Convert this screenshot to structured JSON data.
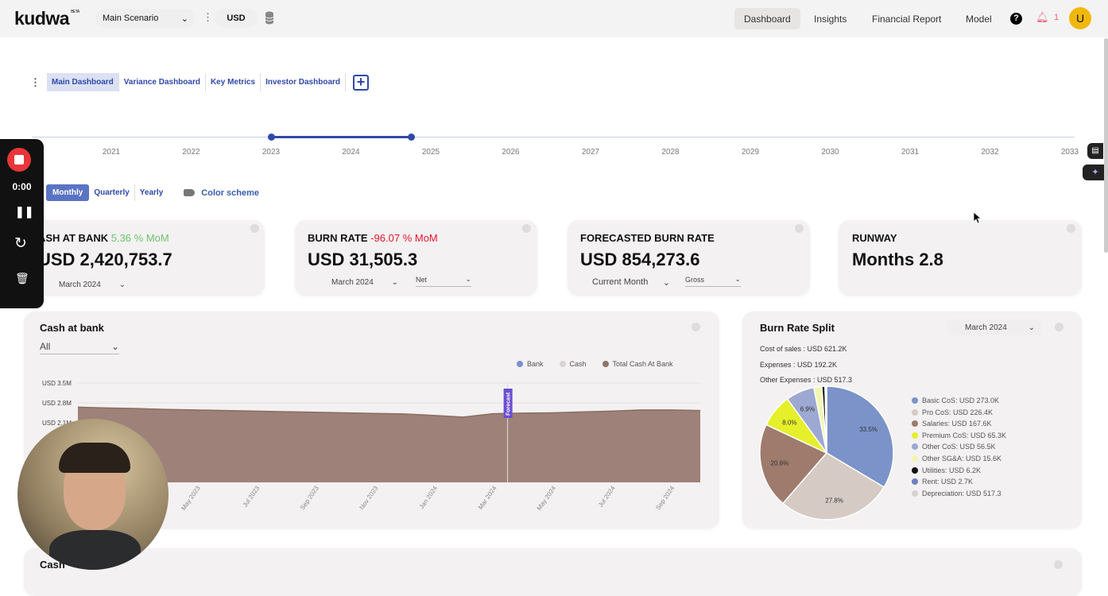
{
  "header": {
    "logo": "kudwa",
    "logo_badge": "BETA",
    "scenario": "Main Scenario",
    "currency": "USD",
    "nav": [
      "Dashboard",
      "Insights",
      "Financial Report",
      "Model"
    ],
    "active_nav": "Dashboard",
    "notifications": "1",
    "avatar": "U"
  },
  "tabs": {
    "items": [
      "Main Dashboard",
      "Variance Dashboard",
      "Key Metrics",
      "Investor Dashboard"
    ],
    "active": "Main Dashboard"
  },
  "timeline": {
    "years": [
      "2021",
      "2022",
      "2023",
      "2024",
      "2025",
      "2026",
      "2027",
      "2028",
      "2029",
      "2030",
      "2031",
      "2032",
      "2033"
    ],
    "range": [
      "2023",
      "2024-09"
    ]
  },
  "period": {
    "options": [
      "Monthly",
      "Quarterly",
      "Yearly"
    ],
    "visible_first": "thly",
    "active": "Monthly",
    "color_scheme": "Color scheme"
  },
  "kpis": [
    {
      "title": "CASH AT BANK",
      "title_visible": "ASH AT BANK",
      "change": "5.36 % MoM",
      "change_color": "#6cc36c",
      "value": "USD 2,420,753.7",
      "value_visible": "USD 2,420,753.7",
      "select1": "March 2024"
    },
    {
      "title": "BURN RATE",
      "change": "-96.07 % MoM",
      "change_color": "#e0182d",
      "value": "USD 31,505.3",
      "select1": "March 2024",
      "select2": "Net"
    },
    {
      "title": "FORECASTED BURN RATE",
      "value": "USD 854,273.6",
      "select1": "Current Month",
      "select2": "Gross"
    },
    {
      "title": "RUNWAY",
      "value": "Months 2.8"
    }
  ],
  "cash_chart": {
    "title": "Cash at bank",
    "filter": "All",
    "forecast_label": "Forecast"
  },
  "burn_split": {
    "title": "Burn Rate Split",
    "month": "March 2024",
    "summary": [
      "Cost of sales : USD 621.2K",
      "Expenses : USD 192.2K",
      "Other Expenses : USD 517.3"
    ]
  },
  "bottom_card": {
    "title": "Cash"
  },
  "recorder": {
    "time": "0:00"
  },
  "chart_data": [
    {
      "type": "area",
      "title": "Cash at bank",
      "legend": [
        {
          "name": "Bank",
          "color": "#7d8fcf"
        },
        {
          "name": "Cash",
          "color": "#d6d3d2"
        },
        {
          "name": "Total Cash At Bank",
          "color": "#8f7368"
        }
      ],
      "legend_placement": "top-right",
      "y_ticks": [
        "USD 3.5M",
        "USD 2.8M",
        "USD 2.1M"
      ],
      "ylim": [
        0,
        3.5
      ],
      "y_unit": "USD M",
      "x_labels": [
        "May 2023",
        "Jul 2023",
        "Sep 2023",
        "Nov 2023",
        "Jan 2024",
        "Mar 2024",
        "May 2024",
        "Jul 2024",
        "Sep 2024"
      ],
      "x": [
        "2023-01",
        "2023-02",
        "2023-03",
        "2023-04",
        "2023-05",
        "2023-06",
        "2023-07",
        "2023-08",
        "2023-09",
        "2023-10",
        "2023-11",
        "2023-12",
        "2024-01",
        "2024-02",
        "2024-03",
        "2024-04",
        "2024-05",
        "2024-06",
        "2024-07",
        "2024-08",
        "2024-09",
        "2024-10"
      ],
      "series": [
        {
          "name": "Total Cash At Bank",
          "values": [
            2.65,
            2.62,
            2.6,
            2.57,
            2.55,
            2.53,
            2.51,
            2.49,
            2.47,
            2.45,
            2.43,
            2.41,
            2.36,
            2.3,
            2.42,
            2.44,
            2.45,
            2.48,
            2.51,
            2.55,
            2.55,
            2.53
          ]
        }
      ],
      "forecast_start": "2024-04"
    },
    {
      "type": "pie",
      "title": "Burn Rate Split",
      "slices": [
        {
          "label": "Basic CoS",
          "value": 273.0,
          "display": "Basic CoS: USD 273.0K",
          "color": "#7b93c9",
          "pct_label": "33.5%"
        },
        {
          "label": "Pro CoS",
          "value": 226.4,
          "display": "Pro CoS: USD 226.4K",
          "color": "#d6cbc4",
          "pct_label": "27.8%"
        },
        {
          "label": "Salaries",
          "value": 167.6,
          "display": "Salaries: USD 167.6K",
          "color": "#9e7b6d",
          "pct_label": "20.6%"
        },
        {
          "label": "Premium CoS",
          "value": 65.3,
          "display": "Premium CoS: USD 65.3K",
          "color": "#e5ef2a",
          "pct_label": "8.0%"
        },
        {
          "label": "Other CoS",
          "value": 56.5,
          "display": "Other CoS: USD 56.5K",
          "color": "#9da9d2",
          "pct_label": "6.9%"
        },
        {
          "label": "Other SG&A",
          "value": 15.6,
          "display": "Other SG&A: USD 15.6K",
          "color": "#f2f6b0",
          "pct_label": ""
        },
        {
          "label": "Utilities",
          "value": 6.2,
          "display": "Utilities: USD 6.2K",
          "color": "#111111",
          "pct_label": ""
        },
        {
          "label": "Rent",
          "value": 2.7,
          "display": "Rent: USD 2.7K",
          "color": "#6e80c4",
          "pct_label": ""
        },
        {
          "label": "Depreciation",
          "value": 0.5173,
          "display": "Depreciation: USD 517.3",
          "color": "#d7d2cf",
          "pct_label": ""
        }
      ],
      "unit": "USD K",
      "legend_placement": "right"
    }
  ]
}
